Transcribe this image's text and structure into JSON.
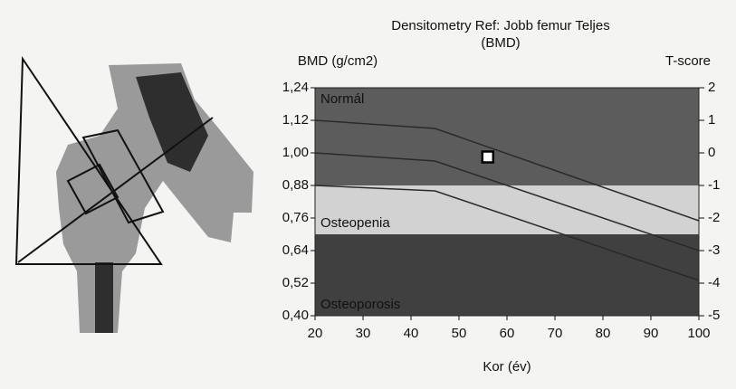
{
  "chart_data": {
    "type": "densitometry",
    "title": [
      "Densitometry Ref: Jobb femur Teljes",
      "(BMD)"
    ],
    "y_label": "BMD (g/cm2)",
    "y2_label": "T-score",
    "x_label": "Kor (év)",
    "xlim": [
      20,
      100
    ],
    "xticks": [
      20,
      30,
      40,
      50,
      60,
      70,
      80,
      90,
      100
    ],
    "ylim": [
      0.4,
      1.24
    ],
    "yticks": [
      {
        "value": 0.4,
        "label": "0,40"
      },
      {
        "value": 0.52,
        "label": "0,52"
      },
      {
        "value": 0.64,
        "label": "0,64"
      },
      {
        "value": 0.76,
        "label": "0,76"
      },
      {
        "value": 0.88,
        "label": "0,88"
      },
      {
        "value": 1.0,
        "label": "1,00"
      },
      {
        "value": 1.12,
        "label": "1,12"
      },
      {
        "value": 1.24,
        "label": "1,24"
      }
    ],
    "y2lim": [
      -5,
      2
    ],
    "y2ticks": [
      -5,
      -4,
      -3,
      -2,
      -1,
      0,
      1,
      2
    ],
    "regions": [
      {
        "label": "Normál",
        "from": 0.88,
        "to": 1.24,
        "color": "#5c5c5c",
        "label_color": "#ffffff"
      },
      {
        "label": "Osteopenia",
        "from": 0.7,
        "to": 0.88,
        "color": "#d2d2d2",
        "label_color": "#000000"
      },
      {
        "label": "Osteoporosis",
        "from": 0.4,
        "to": 0.7,
        "color": "#404040",
        "label_color": "#ffffff"
      }
    ],
    "series": [
      {
        "x": [
          20,
          45,
          100
        ],
        "values": [
          1.12,
          1.09,
          0.75
        ],
        "color": "#2a2a2a"
      },
      {
        "x": [
          20,
          45,
          100
        ],
        "values": [
          1.0,
          0.97,
          0.64
        ],
        "color": "#2a2a2a"
      },
      {
        "x": [
          20,
          45,
          100
        ],
        "values": [
          0.88,
          0.86,
          0.53
        ],
        "color": "#2a2a2a"
      }
    ],
    "patient": {
      "x": 56,
      "y": 0.985
    }
  }
}
